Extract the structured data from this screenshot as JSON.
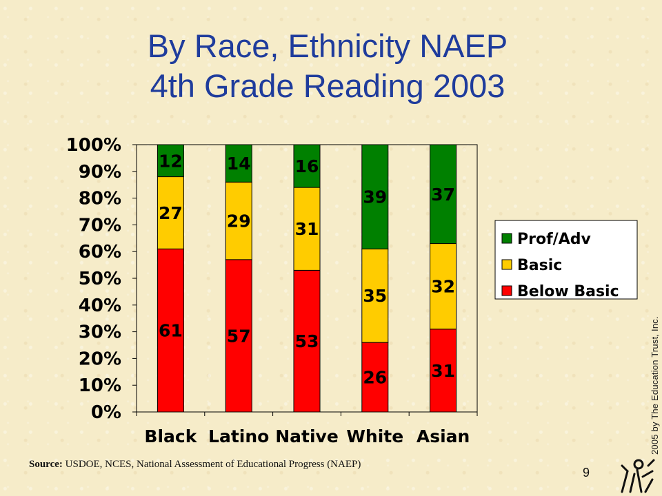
{
  "title_line1": "By Race, Ethnicity NAEP",
  "title_line2": "4th Grade Reading 2003",
  "copyright": "2005 by The Education Trust, Inc.",
  "source_label": "Source:",
  "source_text": "USDOE, NCES, National Assessment of Educational Progress (NAEP)",
  "page_number": "9",
  "logo_icon": "education-trust-logo",
  "colors": {
    "title": "#1f3c9c",
    "below_basic": "#ff0000",
    "basic": "#ffcc00",
    "prof_adv": "#008000"
  },
  "chart_data": {
    "type": "bar",
    "stacked": true,
    "categories": [
      "Black",
      "Latino",
      "Native",
      "White",
      "Asian"
    ],
    "series": [
      {
        "name": "Below Basic",
        "color": "#ff0000",
        "values": [
          61,
          57,
          53,
          26,
          31
        ]
      },
      {
        "name": "Basic",
        "color": "#ffcc00",
        "values": [
          27,
          29,
          31,
          35,
          32
        ]
      },
      {
        "name": "Prof/Adv",
        "color": "#008000",
        "values": [
          12,
          14,
          16,
          39,
          37
        ]
      }
    ],
    "ylim": [
      0,
      100
    ],
    "yticks": [
      "0%",
      "10%",
      "20%",
      "30%",
      "40%",
      "50%",
      "60%",
      "70%",
      "80%",
      "90%",
      "100%"
    ],
    "legend": {
      "position": "right",
      "order": [
        "Prof/Adv",
        "Basic",
        "Below Basic"
      ]
    },
    "grid": false
  }
}
